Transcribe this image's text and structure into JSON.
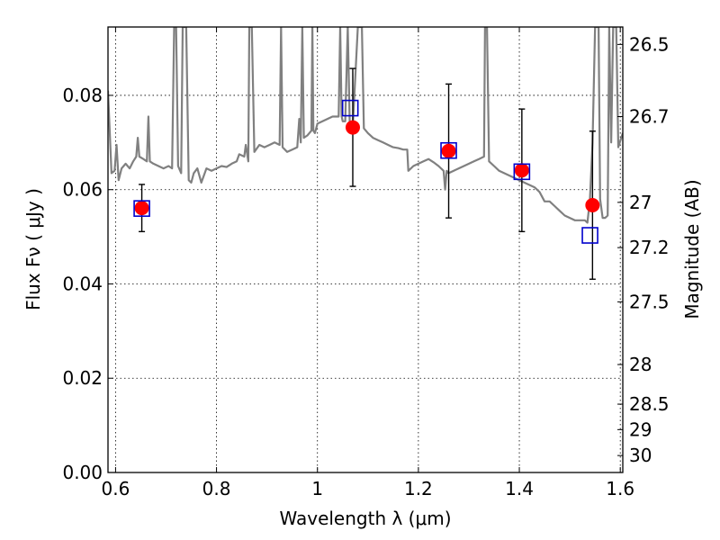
{
  "chart_data": {
    "type": "scatter",
    "xlabel": "Wavelength  λ (μm)",
    "ylabel": "Flux  Fν  ( μJy )",
    "ylabel_right": "Magnitude (AB)",
    "xlim": [
      0.585,
      1.605
    ],
    "ylim": [
      0.0,
      0.0945
    ],
    "grid": true,
    "x_ticks": [
      0.6,
      0.8,
      1.0,
      1.2,
      1.4,
      1.6
    ],
    "x_tick_labels": [
      "0.6",
      "0.8",
      "1",
      "1.2",
      "1.4",
      "1.6"
    ],
    "y_ticks": [
      0.0,
      0.02,
      0.04,
      0.06,
      0.08
    ],
    "y_tick_labels": [
      "0.00",
      "0.02",
      "0.04",
      "0.06",
      "0.08"
    ],
    "right_ticks": [
      {
        "label": "26.5",
        "flux": 0.0908
      },
      {
        "label": "26.7",
        "flux": 0.0755
      },
      {
        "label": "27",
        "flux": 0.0573
      },
      {
        "label": "27.2",
        "flux": 0.0477
      },
      {
        "label": "27.5",
        "flux": 0.0362
      },
      {
        "label": "28",
        "flux": 0.0229
      },
      {
        "label": "28.5",
        "flux": 0.0145
      },
      {
        "label": "29",
        "flux": 0.0091
      },
      {
        "label": "30",
        "flux": 0.0036
      }
    ],
    "colors": {
      "observed": "#ff0000",
      "model_box": "#0000cc",
      "spectrum": "#808080",
      "errorbar": "#000000"
    },
    "series": [
      {
        "kind": "model_spectrum",
        "points": [
          [
            0.585,
            0.081
          ],
          [
            0.592,
            0.0635
          ],
          [
            0.598,
            0.064
          ],
          [
            0.602,
            0.0695
          ],
          [
            0.606,
            0.062
          ],
          [
            0.612,
            0.0645
          ],
          [
            0.62,
            0.0655
          ],
          [
            0.628,
            0.0645
          ],
          [
            0.635,
            0.066
          ],
          [
            0.641,
            0.067
          ],
          [
            0.644,
            0.071
          ],
          [
            0.647,
            0.067
          ],
          [
            0.655,
            0.0665
          ],
          [
            0.662,
            0.066
          ],
          [
            0.665,
            0.0755
          ],
          [
            0.668,
            0.066
          ],
          [
            0.675,
            0.0655
          ],
          [
            0.685,
            0.065
          ],
          [
            0.695,
            0.0645
          ],
          [
            0.705,
            0.065
          ],
          [
            0.712,
            0.0645
          ],
          [
            0.716,
            0.0945
          ],
          [
            0.72,
            0.0945
          ],
          [
            0.724,
            0.065
          ],
          [
            0.73,
            0.0635
          ],
          [
            0.733,
            0.0945
          ],
          [
            0.74,
            0.0945
          ],
          [
            0.745,
            0.062
          ],
          [
            0.75,
            0.0615
          ],
          [
            0.755,
            0.0635
          ],
          [
            0.762,
            0.0645
          ],
          [
            0.77,
            0.0615
          ],
          [
            0.78,
            0.0645
          ],
          [
            0.79,
            0.064
          ],
          [
            0.8,
            0.0645
          ],
          [
            0.81,
            0.065
          ],
          [
            0.82,
            0.0648
          ],
          [
            0.83,
            0.0655
          ],
          [
            0.84,
            0.066
          ],
          [
            0.845,
            0.0675
          ],
          [
            0.855,
            0.067
          ],
          [
            0.858,
            0.0695
          ],
          [
            0.863,
            0.066
          ],
          [
            0.865,
            0.0945
          ],
          [
            0.87,
            0.0945
          ],
          [
            0.875,
            0.068
          ],
          [
            0.885,
            0.0695
          ],
          [
            0.895,
            0.069
          ],
          [
            0.905,
            0.0695
          ],
          [
            0.915,
            0.07
          ],
          [
            0.925,
            0.0695
          ],
          [
            0.928,
            0.0945
          ],
          [
            0.931,
            0.069
          ],
          [
            0.94,
            0.068
          ],
          [
            0.95,
            0.0685
          ],
          [
            0.96,
            0.069
          ],
          [
            0.964,
            0.075
          ],
          [
            0.967,
            0.07
          ],
          [
            0.97,
            0.0945
          ],
          [
            0.973,
            0.071
          ],
          [
            0.98,
            0.0715
          ],
          [
            0.988,
            0.0725
          ],
          [
            0.99,
            0.0945
          ],
          [
            0.992,
            0.0725
          ],
          [
            0.995,
            0.072
          ],
          [
            1.0,
            0.074
          ],
          [
            1.01,
            0.0745
          ],
          [
            1.02,
            0.075
          ],
          [
            1.03,
            0.0755
          ],
          [
            1.042,
            0.0755
          ],
          [
            1.045,
            0.0945
          ],
          [
            1.048,
            0.0755
          ],
          [
            1.05,
            0.0745
          ],
          [
            1.055,
            0.0745
          ],
          [
            1.06,
            0.0945
          ],
          [
            1.064,
            0.074
          ],
          [
            1.07,
            0.0735
          ],
          [
            1.08,
            0.0945
          ],
          [
            1.088,
            0.0945
          ],
          [
            1.092,
            0.073
          ],
          [
            1.1,
            0.072
          ],
          [
            1.11,
            0.071
          ],
          [
            1.12,
            0.0705
          ],
          [
            1.13,
            0.07
          ],
          [
            1.14,
            0.0695
          ],
          [
            1.15,
            0.069
          ],
          [
            1.16,
            0.0688
          ],
          [
            1.17,
            0.0685
          ],
          [
            1.178,
            0.0685
          ],
          [
            1.18,
            0.064
          ],
          [
            1.19,
            0.065
          ],
          [
            1.2,
            0.0655
          ],
          [
            1.21,
            0.066
          ],
          [
            1.22,
            0.0665
          ],
          [
            1.23,
            0.0658
          ],
          [
            1.24,
            0.065
          ],
          [
            1.25,
            0.064
          ],
          [
            1.253,
            0.06
          ],
          [
            1.256,
            0.064
          ],
          [
            1.26,
            0.0635
          ],
          [
            1.27,
            0.064
          ],
          [
            1.28,
            0.0645
          ],
          [
            1.29,
            0.065
          ],
          [
            1.3,
            0.0655
          ],
          [
            1.31,
            0.066
          ],
          [
            1.32,
            0.0665
          ],
          [
            1.33,
            0.067
          ],
          [
            1.332,
            0.0945
          ],
          [
            1.336,
            0.0945
          ],
          [
            1.34,
            0.066
          ],
          [
            1.35,
            0.065
          ],
          [
            1.36,
            0.064
          ],
          [
            1.37,
            0.0635
          ],
          [
            1.38,
            0.063
          ],
          [
            1.39,
            0.0625
          ],
          [
            1.4,
            0.062
          ],
          [
            1.41,
            0.0615
          ],
          [
            1.42,
            0.061
          ],
          [
            1.43,
            0.0605
          ],
          [
            1.44,
            0.0595
          ],
          [
            1.45,
            0.0575
          ],
          [
            1.46,
            0.0575
          ],
          [
            1.47,
            0.0565
          ],
          [
            1.48,
            0.0555
          ],
          [
            1.49,
            0.0545
          ],
          [
            1.5,
            0.054
          ],
          [
            1.51,
            0.0535
          ],
          [
            1.52,
            0.0535
          ],
          [
            1.53,
            0.0535
          ],
          [
            1.535,
            0.053
          ],
          [
            1.54,
            0.058
          ],
          [
            1.545,
            0.07
          ],
          [
            1.55,
            0.0945
          ],
          [
            1.557,
            0.0945
          ],
          [
            1.56,
            0.058
          ],
          [
            1.565,
            0.054
          ],
          [
            1.57,
            0.054
          ],
          [
            1.575,
            0.0545
          ],
          [
            1.578,
            0.0945
          ],
          [
            1.582,
            0.07
          ],
          [
            1.586,
            0.0945
          ],
          [
            1.592,
            0.0945
          ],
          [
            1.596,
            0.069
          ],
          [
            1.602,
            0.071
          ],
          [
            1.605,
            0.072
          ]
        ]
      },
      {
        "kind": "observed_photometry",
        "points": [
          {
            "x": 0.652,
            "y": 0.0561,
            "err": 0.005
          },
          {
            "x": 1.07,
            "y": 0.0732,
            "err": 0.0125
          },
          {
            "x": 1.26,
            "y": 0.0682,
            "err": 0.0142
          },
          {
            "x": 1.405,
            "y": 0.0641,
            "err": 0.013
          },
          {
            "x": 1.545,
            "y": 0.0567,
            "err": 0.0157
          }
        ]
      },
      {
        "kind": "model_photometry",
        "points": [
          {
            "x": 0.652,
            "y": 0.056
          },
          {
            "x": 1.065,
            "y": 0.0773
          },
          {
            "x": 1.26,
            "y": 0.0683
          },
          {
            "x": 1.405,
            "y": 0.0638
          },
          {
            "x": 1.54,
            "y": 0.0503
          }
        ]
      }
    ]
  }
}
